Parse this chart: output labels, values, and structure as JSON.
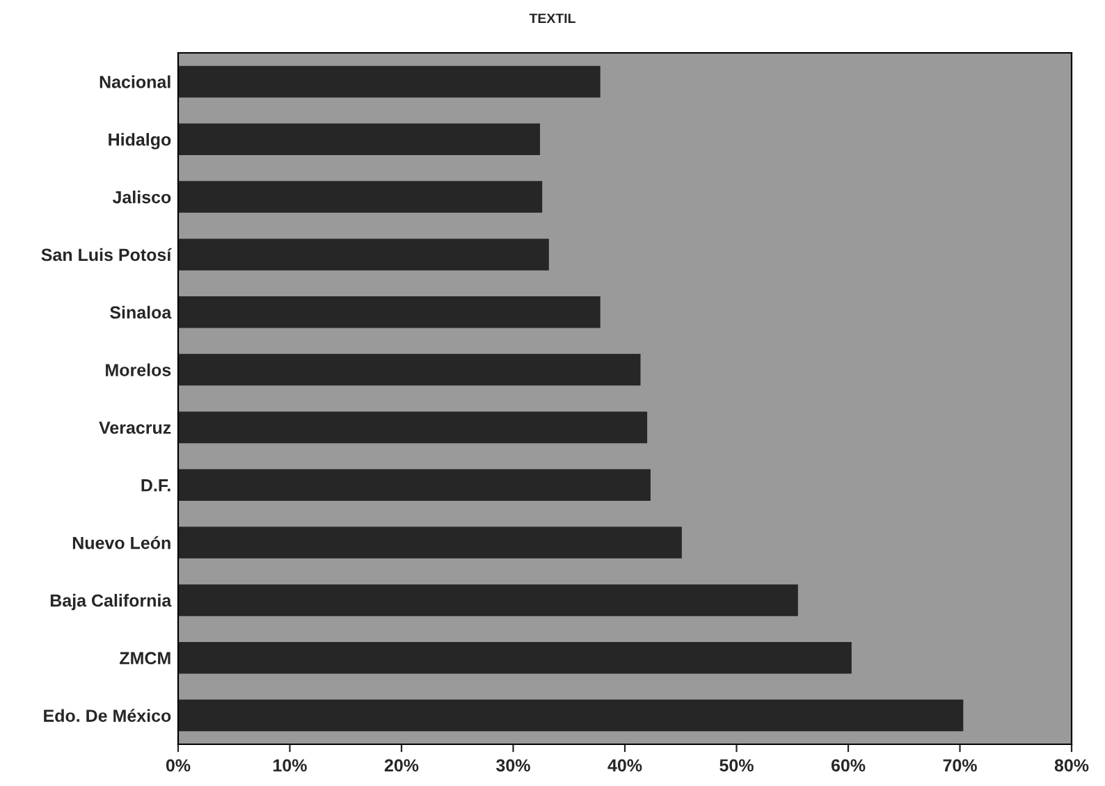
{
  "chart_data": {
    "type": "bar",
    "orientation": "horizontal",
    "title": "TEXTIL",
    "categories": [
      "Nacional",
      "Hidalgo",
      "Jalisco",
      "San Luis Potosí",
      "Sinaloa",
      "Morelos",
      "Veracruz",
      "D.F.",
      "Nuevo León",
      "Baja California",
      "ZMCM",
      "Edo. De México"
    ],
    "values": [
      37.8,
      32.4,
      32.6,
      33.2,
      37.8,
      41.4,
      42.0,
      42.3,
      45.1,
      55.5,
      60.3,
      70.3
    ],
    "color": "#262626",
    "xlim": [
      0,
      80
    ],
    "xticks": [
      {
        "value": 0,
        "label": "0%"
      },
      {
        "value": 10,
        "label": "10%"
      },
      {
        "value": 20,
        "label": "20%"
      },
      {
        "value": 30,
        "label": "30%"
      },
      {
        "value": 40,
        "label": "40%"
      },
      {
        "value": 50,
        "label": "50%"
      },
      {
        "value": 60,
        "label": "60%"
      },
      {
        "value": 70,
        "label": "70%"
      },
      {
        "value": 80,
        "label": "80%"
      }
    ],
    "grid": false,
    "legend": false
  }
}
